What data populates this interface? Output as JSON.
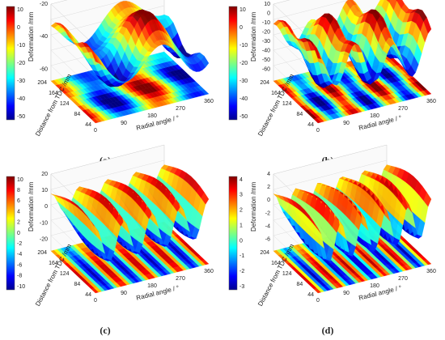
{
  "panels": [
    {
      "label": "(a)",
      "colorbar_ticks": [
        "10",
        "0",
        "-10",
        "-20",
        "-30",
        "-40",
        "-50"
      ],
      "z_axis_label": "Deformation /mm",
      "z_ticks": [
        "-20",
        "-40",
        "-60"
      ],
      "y_axis_label": "Distance from TDC /mm",
      "y_ticks": [
        "204",
        "164",
        "124",
        "84",
        "44"
      ],
      "x_axis_label": "Radial angle / °",
      "x_ticks": [
        "0",
        "90",
        "180",
        "270",
        "360"
      ]
    },
    {
      "label": "(b)",
      "colorbar_ticks": [
        "10",
        "0",
        "-10",
        "-20",
        "-30",
        "-40",
        "-50"
      ],
      "z_axis_label": "Deformation /mm",
      "z_ticks": [
        "10",
        "0",
        "-10",
        "-20",
        "-30",
        "-40",
        "-50",
        "-60"
      ],
      "y_axis_label": "Distance from TDC /mm",
      "y_ticks": [
        "204",
        "164",
        "124",
        "84",
        "44"
      ],
      "x_axis_label": "Radial angle / °",
      "x_ticks": [
        "0",
        "90",
        "180",
        "270",
        "360"
      ]
    },
    {
      "label": "(c)",
      "colorbar_ticks": [
        "10",
        "8",
        "6",
        "4",
        "2",
        "0",
        "-2",
        "-4",
        "-6",
        "-8",
        "-10"
      ],
      "z_axis_label": "Deformation /mm",
      "z_ticks": [
        "20",
        "10",
        "0",
        "-10",
        "-20"
      ],
      "y_axis_label": "Distance from TDC /mm",
      "y_ticks": [
        "204",
        "164",
        "124",
        "84",
        "44"
      ],
      "x_axis_label": "Radial angle / °",
      "x_ticks": [
        "0",
        "90",
        "180",
        "270",
        "360"
      ]
    },
    {
      "label": "(d)",
      "colorbar_ticks": [
        "4",
        "3",
        "2",
        "1",
        "0",
        "-1",
        "-2",
        "-3"
      ],
      "z_axis_label": "Deformation /mm",
      "z_ticks": [
        "4",
        "2",
        "0",
        "-2",
        "-4",
        "-6"
      ],
      "y_axis_label": "Distance from TDC /mm",
      "y_ticks": [
        "204",
        "164",
        "124",
        "84",
        "44"
      ],
      "x_axis_label": "Radial angle / °",
      "x_ticks": [
        "0",
        "90",
        "180",
        "270",
        "360"
      ]
    }
  ]
}
